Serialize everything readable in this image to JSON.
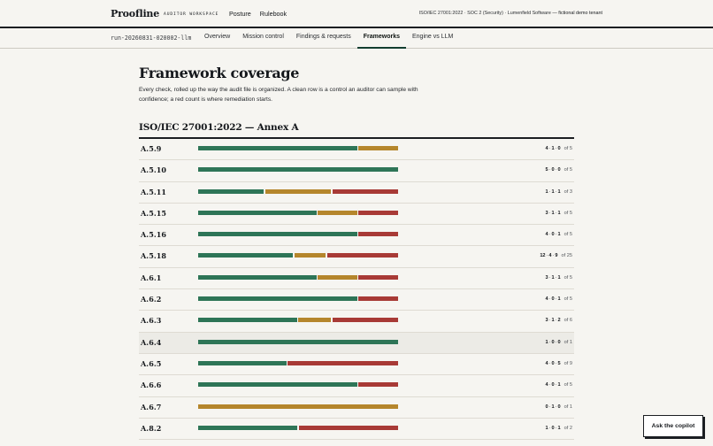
{
  "brand": {
    "name": "Proofline",
    "subtitle": "AUDITOR WORKSPACE"
  },
  "topnav": [
    {
      "label": "Posture"
    },
    {
      "label": "Rulebook"
    }
  ],
  "top_right": {
    "frameworks_text": "ISO/IEC 27001:2022 · SOC 2 (Security) · Lumenfield Software",
    "tenant_text": " — fictional demo tenant"
  },
  "run_id": "run-20260831-020002-llm",
  "tabs": [
    {
      "label": "Overview",
      "active": false
    },
    {
      "label": "Mission control",
      "active": false
    },
    {
      "label": "Findings & requests",
      "active": false
    },
    {
      "label": "Frameworks",
      "active": true
    },
    {
      "label": "Engine vs LLM",
      "active": false
    }
  ],
  "page": {
    "title": "Framework coverage",
    "intro": "Every check, rolled up the way the audit file is organized. A clean row is a control an auditor can sample with confidence; a red count is where remediation starts."
  },
  "section": {
    "title": "ISO/IEC 27001:2022 — Annex A"
  },
  "colors": {
    "pass": "#2e7557",
    "partial": "#b5862c",
    "fail": "#a83a36"
  },
  "controls": [
    {
      "id": "A.5.9",
      "pass": 4,
      "partial": 1,
      "fail": 0,
      "total": 5,
      "of": "of 5"
    },
    {
      "id": "A.5.10",
      "pass": 5,
      "partial": 0,
      "fail": 0,
      "total": 5,
      "of": "of 5"
    },
    {
      "id": "A.5.11",
      "pass": 1,
      "partial": 1,
      "fail": 1,
      "total": 3,
      "of": "of 3"
    },
    {
      "id": "A.5.15",
      "pass": 3,
      "partial": 1,
      "fail": 1,
      "total": 5,
      "of": "of 5"
    },
    {
      "id": "A.5.16",
      "pass": 4,
      "partial": 0,
      "fail": 1,
      "total": 5,
      "of": "of 5"
    },
    {
      "id": "A.5.18",
      "pass": 12,
      "partial": 4,
      "fail": 9,
      "total": 25,
      "of": "of 25"
    },
    {
      "id": "A.6.1",
      "pass": 3,
      "partial": 1,
      "fail": 1,
      "total": 5,
      "of": "of 5"
    },
    {
      "id": "A.6.2",
      "pass": 4,
      "partial": 0,
      "fail": 1,
      "total": 5,
      "of": "of 5"
    },
    {
      "id": "A.6.3",
      "pass": 3,
      "partial": 1,
      "fail": 2,
      "total": 6,
      "of": "of 6"
    },
    {
      "id": "A.6.4",
      "pass": 1,
      "partial": 0,
      "fail": 0,
      "total": 1,
      "of": "of 1",
      "highlighted": true
    },
    {
      "id": "A.6.5",
      "pass": 4,
      "partial": 0,
      "fail": 5,
      "total": 9,
      "of": "of 9"
    },
    {
      "id": "A.6.6",
      "pass": 4,
      "partial": 0,
      "fail": 1,
      "total": 5,
      "of": "of 5"
    },
    {
      "id": "A.6.7",
      "pass": 0,
      "partial": 1,
      "fail": 0,
      "total": 1,
      "of": "of 1"
    },
    {
      "id": "A.8.2",
      "pass": 1,
      "partial": 0,
      "fail": 1,
      "total": 2,
      "of": "of 2"
    }
  ],
  "copilot": {
    "label": "Ask the copilot"
  }
}
